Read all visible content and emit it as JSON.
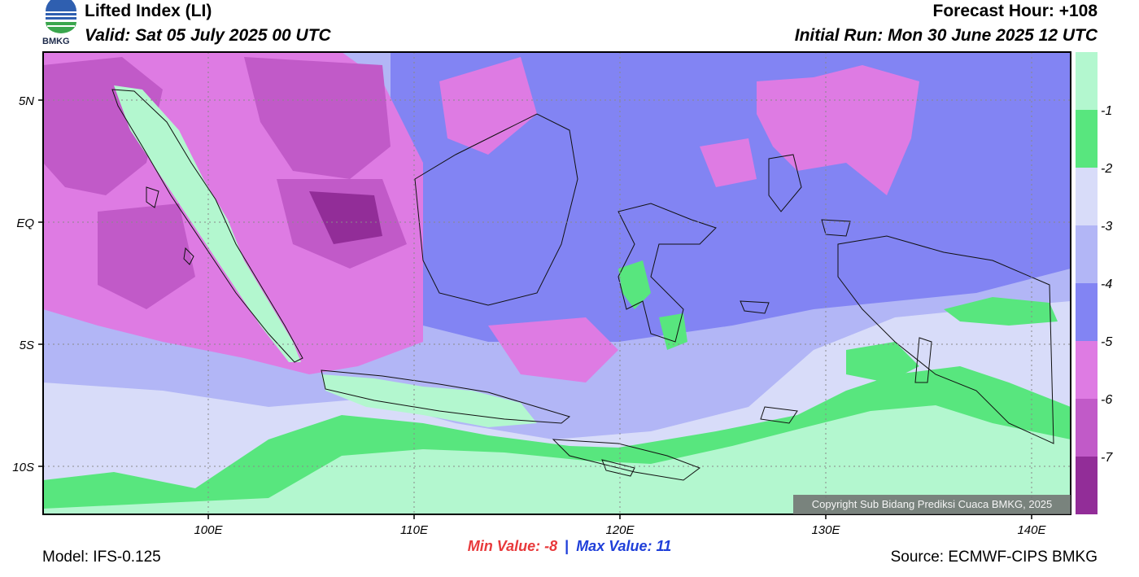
{
  "header": {
    "title": "Lifted Index (LI)",
    "valid": "Valid: Sat 05 July 2025 00 UTC",
    "forecast_hour": "Forecast Hour: +108",
    "initial_run": "Initial Run: Mon 30 June 2025 12 UTC"
  },
  "logo": {
    "text": "BMKG",
    "icon": "bmkg-logo-icon"
  },
  "map": {
    "lat_labels": [
      "5N",
      "EQ",
      "5S",
      "10S"
    ],
    "lon_labels": [
      "100E",
      "110E",
      "120E",
      "130E",
      "140E"
    ],
    "copyright": "Copyright Sub Bidang Prediksi Cuaca BMKG, 2025"
  },
  "colorbar": {
    "labels": [
      "-1",
      "-2",
      "-3",
      "-4",
      "-5",
      "-6",
      "-7"
    ],
    "colors": [
      "#b3f7cf",
      "#58e67e",
      "#d8dcf9",
      "#b2b6f6",
      "#8284f3",
      "#de7be3",
      "#c15ac8",
      "#922d98"
    ]
  },
  "stats": {
    "min_label": "Min Value:  -8",
    "separator": "|",
    "max_label": "Max Value:  11"
  },
  "footer": {
    "model": "Model: IFS-0.125",
    "source": "Source: ECMWF-CIPS BMKG"
  }
}
